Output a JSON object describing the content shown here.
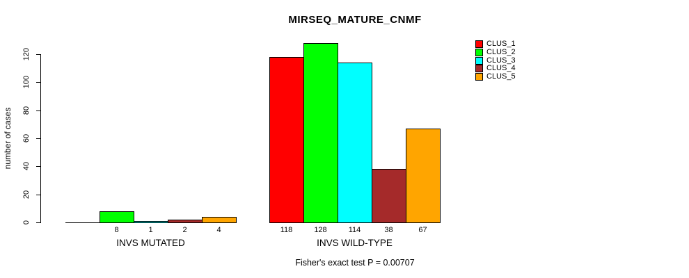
{
  "chart_data": {
    "type": "bar",
    "title": "MIRSEQ_MATURE_CNMF",
    "ylabel": "number of cases",
    "xlabel": "",
    "annotation": "Fisher's exact test P = 0.00707",
    "yticks": [
      0,
      20,
      40,
      60,
      80,
      100,
      120
    ],
    "ylim": [
      0,
      130
    ],
    "grid": false,
    "legend_position": "top-right",
    "series": [
      {
        "name": "CLUS_1",
        "color": "#ff0000"
      },
      {
        "name": "CLUS_2",
        "color": "#00ff00"
      },
      {
        "name": "CLUS_3",
        "color": "#00ffff"
      },
      {
        "name": "CLUS_4",
        "color": "#a52a2a"
      },
      {
        "name": "CLUS_5",
        "color": "#ffa500"
      }
    ],
    "groups": [
      {
        "label": "INVS MUTATED",
        "values": [
          0,
          8,
          1,
          2,
          4
        ],
        "bar_labels": [
          "",
          "8",
          "1",
          "2",
          "4"
        ]
      },
      {
        "label": "INVS WILD-TYPE",
        "values": [
          118,
          128,
          114,
          38,
          67
        ],
        "bar_labels": [
          "118",
          "128",
          "114",
          "38",
          "67"
        ]
      }
    ]
  }
}
